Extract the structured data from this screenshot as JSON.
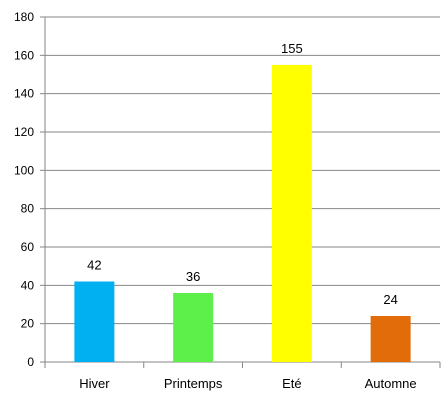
{
  "chart_data": {
    "type": "bar",
    "title": "",
    "xlabel": "",
    "ylabel": "",
    "categories": [
      "Hiver",
      "Printemps",
      "Eté",
      "Automne"
    ],
    "values": [
      42,
      36,
      155,
      24
    ],
    "data_labels": [
      "42",
      "36",
      "155",
      "24"
    ],
    "colors": [
      "#00b0f0",
      "#5ef04a",
      "#ffff00",
      "#e36c0a"
    ],
    "ylim": [
      0,
      180
    ],
    "y_ticks": [
      0,
      20,
      40,
      60,
      80,
      100,
      120,
      140,
      160,
      180
    ],
    "grid": true,
    "legend": "none"
  }
}
